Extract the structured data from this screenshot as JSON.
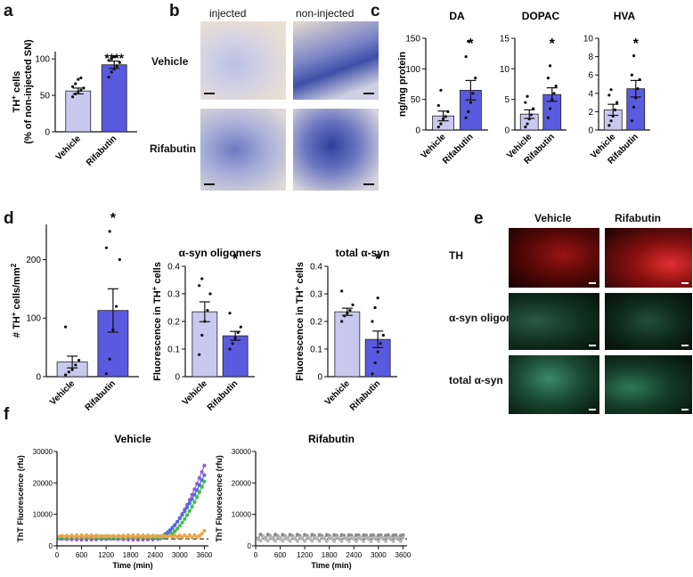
{
  "panels": {
    "a": "a",
    "b": "b",
    "c": "c",
    "d": "d",
    "e": "e",
    "f": "f"
  },
  "colors": {
    "vehicle": "#c9c9f0",
    "rifabutin": "#5a5adf",
    "line": "#1a1a1a"
  },
  "b": {
    "col_headers": [
      "injected",
      "non-injected"
    ],
    "row_labels": [
      "Vehicle",
      "Rifabutin"
    ]
  },
  "e": {
    "col_headers": [
      "Vehicle",
      "Rifabutin"
    ],
    "row_labels": [
      "TH",
      "α-syn oligomers",
      "total α-syn"
    ],
    "row_colors": [
      "#6a0a0a",
      "#0c2a1a",
      "#0c2a1a"
    ]
  },
  "chart_data": [
    {
      "id": "a",
      "type": "bar",
      "categories": [
        "Vehicle",
        "Rifabutin"
      ],
      "values": [
        56,
        92
      ],
      "errors": [
        4,
        5
      ],
      "ylabel": "TH+ cells (% of non-injected SN)",
      "ylim": [
        0,
        110
      ],
      "yticks": [
        0,
        50,
        100
      ],
      "significance": "****",
      "points": [
        [
          48,
          52,
          55,
          57,
          60,
          62,
          66,
          72,
          74
        ],
        [
          75,
          82,
          86,
          90,
          95,
          98,
          100,
          103
        ]
      ]
    },
    {
      "id": "c1",
      "type": "bar",
      "title": "DA",
      "categories": [
        "Vehicle",
        "Rifabutin"
      ],
      "values": [
        23,
        65
      ],
      "errors": [
        8,
        16
      ],
      "ylabel": "ng/mg protein",
      "ylim": [
        0,
        150
      ],
      "yticks": [
        0,
        50,
        100,
        150
      ],
      "significance": "*",
      "points": [
        [
          5,
          10,
          18,
          22,
          30,
          40,
          65
        ],
        [
          20,
          30,
          45,
          60,
          85,
          120,
          145
        ]
      ]
    },
    {
      "id": "c2",
      "type": "bar",
      "title": "DOPAC",
      "categories": [
        "Vehicle",
        "Rifabutin"
      ],
      "values": [
        2.6,
        5.8
      ],
      "errors": [
        0.7,
        1.1
      ],
      "ylim": [
        0,
        15
      ],
      "yticks": [
        0,
        5,
        10,
        15
      ],
      "significance": "*",
      "points": [
        [
          0.5,
          1,
          1.8,
          2.5,
          3.5,
          4.5,
          5.5
        ],
        [
          2,
          3.5,
          5,
          6,
          7.2,
          8.5,
          10.5
        ]
      ]
    },
    {
      "id": "c3",
      "type": "bar",
      "title": "HVA",
      "categories": [
        "Vehicle",
        "Rifabutin"
      ],
      "values": [
        2.2,
        4.5
      ],
      "errors": [
        0.6,
        0.9
      ],
      "ylim": [
        0,
        10
      ],
      "yticks": [
        0,
        2,
        4,
        6,
        8,
        10
      ],
      "significance": "*",
      "points": [
        [
          0.5,
          1,
          1.5,
          2.2,
          3,
          3.8,
          4.4
        ],
        [
          1,
          2.5,
          3.5,
          4.5,
          5.5,
          6,
          8.1
        ]
      ]
    },
    {
      "id": "d1",
      "type": "bar",
      "categories": [
        "Vehicle",
        "Rifabutin"
      ],
      "values": [
        25,
        113
      ],
      "errors": [
        10,
        37
      ],
      "ylabel": "# TH+ cells/mm2",
      "ylim": [
        0,
        260
      ],
      "yticks": [
        0,
        100,
        200
      ],
      "significance": "*",
      "points": [
        [
          3,
          8,
          12,
          20,
          28,
          85
        ],
        [
          5,
          30,
          80,
          120,
          200,
          220,
          248
        ]
      ]
    },
    {
      "id": "d2",
      "type": "bar",
      "title": "α-syn oligomers",
      "categories": [
        "Vehicle",
        "Rifabutin"
      ],
      "values": [
        0.235,
        0.148
      ],
      "errors": [
        0.036,
        0.016
      ],
      "ylabel": "Fluorescence in TH+ cells",
      "ylim": [
        0,
        0.4
      ],
      "yticks": [
        0,
        0.1,
        0.2,
        0.3,
        0.4
      ],
      "significance": "*",
      "points": [
        [
          0.08,
          0.15,
          0.2,
          0.24,
          0.3,
          0.33,
          0.355
        ],
        [
          0.1,
          0.12,
          0.14,
          0.16,
          0.18,
          0.23
        ]
      ]
    },
    {
      "id": "d3",
      "type": "bar",
      "title": "total α-syn",
      "categories": [
        "Vehicle",
        "Rifabutin"
      ],
      "values": [
        0.235,
        0.135
      ],
      "errors": [
        0.013,
        0.03
      ],
      "ylabel": "Fluorescence in TH+ cells",
      "ylim": [
        0,
        0.4
      ],
      "yticks": [
        0,
        0.1,
        0.2,
        0.3,
        0.4
      ],
      "significance": "*",
      "points": [
        [
          0.2,
          0.22,
          0.23,
          0.24,
          0.26,
          0.31
        ],
        [
          0.01,
          0.05,
          0.09,
          0.12,
          0.15,
          0.2,
          0.25,
          0.285
        ]
      ]
    },
    {
      "id": "f1",
      "type": "scatter",
      "title": "Vehicle",
      "xlabel": "Time (min)",
      "ylabel": "ThT Fluorescence (rfu)",
      "xlim": [
        0,
        3700
      ],
      "ylim": [
        0,
        30000
      ],
      "xticks": [
        0,
        600,
        1200,
        1800,
        2400,
        3000,
        3600
      ],
      "yticks": [
        0,
        10000,
        20000,
        30000
      ],
      "series": [
        {
          "color": "#9b59d6",
          "onset": 2500,
          "final": 25500
        },
        {
          "color": "#4a6ee0",
          "onset": 2450,
          "final": 22500
        },
        {
          "color": "#3fbf4a",
          "onset": 2650,
          "final": 20500
        },
        {
          "color": "#e8a64a",
          "onset": 3450,
          "final": 4800
        }
      ]
    },
    {
      "id": "f2",
      "type": "scatter",
      "title": "Rifabutin",
      "xlabel": "Time (min)",
      "ylabel": "ThT Fluorescence (rfu)",
      "xlim": [
        0,
        3700
      ],
      "ylim": [
        0,
        30000
      ],
      "xticks": [
        0,
        600,
        1200,
        1800,
        2400,
        3000,
        3600
      ],
      "yticks": [
        0,
        10000,
        20000,
        30000
      ],
      "series": [
        {
          "color": "#8a8a8a",
          "onset": null,
          "final": 3000
        },
        {
          "color": "#b5b5b5",
          "onset": null,
          "final": 2200
        }
      ]
    }
  ]
}
